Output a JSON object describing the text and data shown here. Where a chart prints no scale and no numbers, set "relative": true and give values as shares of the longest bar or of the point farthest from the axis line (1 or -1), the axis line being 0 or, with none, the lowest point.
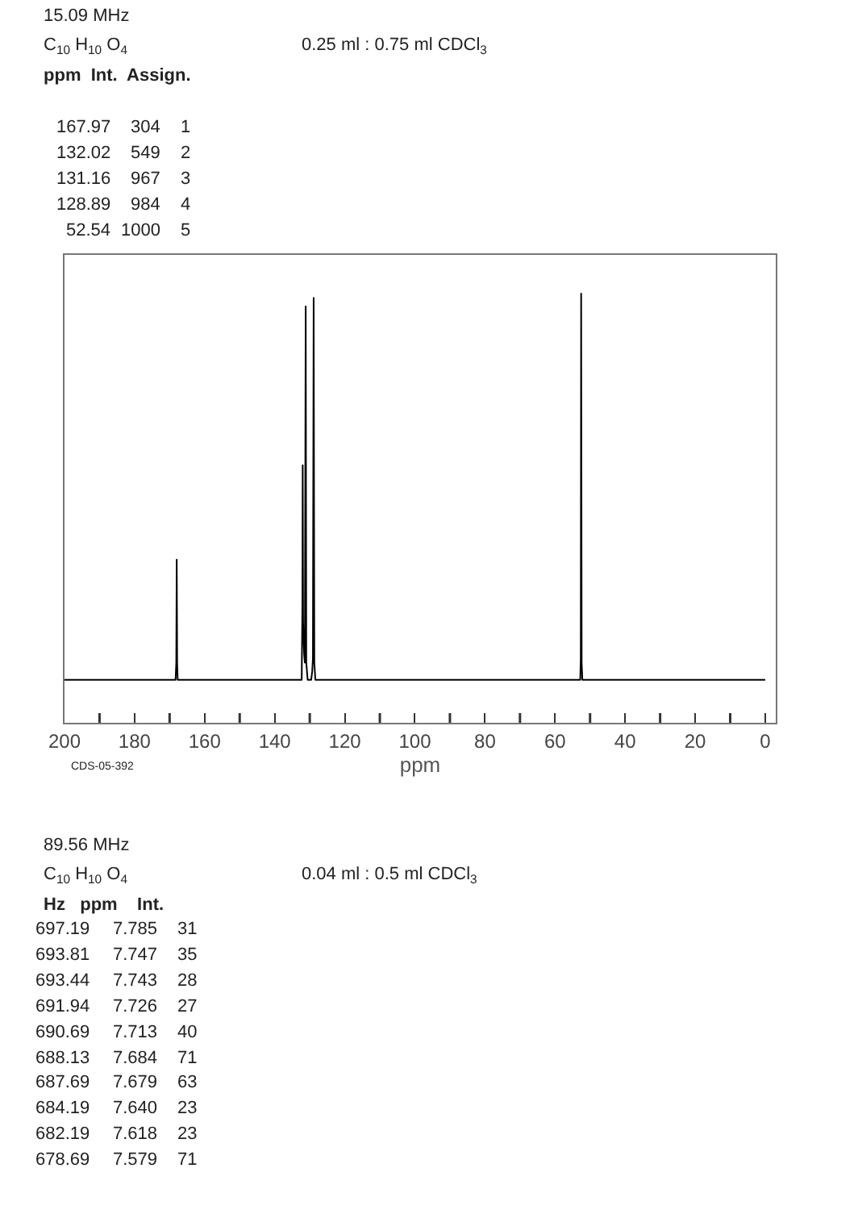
{
  "chart_data": {
    "type": "line",
    "relative": true,
    "xlabel": "ppm",
    "color": "#000000",
    "grid": false,
    "legend": false,
    "marker": "none",
    "line_style": "solid",
    "x": [
      200,
      168.3,
      168.1,
      167.97,
      167.85,
      167.7,
      132.3,
      132.1,
      132.02,
      131.9,
      131.8,
      131.6,
      131.4,
      131.16,
      131.0,
      130.6,
      129.6,
      129.3,
      129.1,
      128.89,
      128.7,
      128.4,
      52.8,
      52.65,
      52.54,
      52.4,
      52.2,
      0
    ],
    "values": [
      0.1,
      0.1,
      0.14,
      0.38,
      0.14,
      0.1,
      0.1,
      0.28,
      0.6,
      0.24,
      0.2,
      0.16,
      0.14,
      0.97,
      0.14,
      0.1,
      0.1,
      0.12,
      0.15,
      0.99,
      0.14,
      0.1,
      0.1,
      0.15,
      1.0,
      0.14,
      0.1,
      0.1
    ],
    "xlim": [
      200,
      -3
    ],
    "xticks": [
      200,
      {
        "value": 190,
        "label": null
      },
      180,
      {
        "value": 170,
        "label": null
      },
      160,
      {
        "value": 150,
        "label": null
      },
      140,
      {
        "value": 130,
        "label": null
      },
      120,
      {
        "value": 110,
        "label": null
      },
      100,
      {
        "value": 90,
        "label": null
      },
      80,
      {
        "value": 70,
        "label": null
      },
      60,
      {
        "value": 50,
        "label": null
      },
      40,
      {
        "value": 30,
        "label": null
      },
      20,
      {
        "value": 10,
        "label": null
      },
      0
    ],
    "annotations": [
      "15.09 MHz",
      "C$_{10}$ H$_{10}$ O$_{4}$",
      "0.25 ml : 0.75 ml CDCl$_{3}$",
      "ppm  Int.  Assign.",
      "167.97 304 1",
      "132.02 549 2",
      "131.16 967 3",
      "128.89 984 4",
      "52.54 1000 5",
      "CDS-05-392",
      "89.56 MHz",
      "C$_{10}$ H$_{10}$ O$_{4}$",
      "0.04 ml : 0.5 ml CDCl$_{3}$",
      "Hz   ppm    Int.",
      "697.19 7.785 31",
      "693.81 7.747 35",
      "693.44 7.743 28",
      "691.94 7.726 27",
      "690.69 7.713 40",
      "688.13 7.684 71",
      "687.69 7.679 63",
      "684.19 7.640 23",
      "682.19 7.618 23",
      "678.69 7.579 71"
    ]
  }
}
